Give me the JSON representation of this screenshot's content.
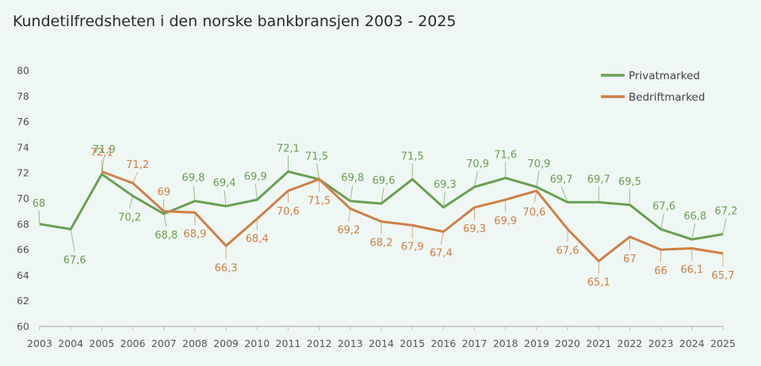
{
  "chart_data": {
    "type": "line",
    "title": "Kundetilfredsheten i den norske bankbransjen 2003 - 2025",
    "xlabel": "",
    "ylabel": "",
    "x": [
      "2003",
      "2004",
      "2005",
      "2006",
      "2007",
      "2008",
      "2009",
      "2010",
      "2011",
      "2012",
      "2013",
      "2014",
      "2015",
      "2016",
      "2017",
      "2018",
      "2019",
      "2020",
      "2021",
      "2022",
      "2023",
      "2024",
      "2025"
    ],
    "ylim": [
      60,
      80
    ],
    "yticks": [
      "60",
      "62",
      "64",
      "66",
      "68",
      "70",
      "72",
      "74",
      "76",
      "78",
      "80"
    ],
    "grid": false,
    "legend_position": "top-right",
    "series": [
      {
        "name": "Privatmarked",
        "color": "#6a9f53",
        "values": [
          68,
          67.6,
          71.9,
          70.2,
          68.8,
          69.8,
          69.4,
          69.9,
          72.1,
          71.5,
          69.8,
          69.6,
          71.5,
          69.3,
          70.9,
          71.6,
          70.9,
          69.7,
          69.7,
          69.5,
          67.6,
          66.8,
          67.2
        ],
        "labels": [
          "68",
          "67,6",
          "71,9",
          "70,2",
          "68,8",
          "69,8",
          "69,4",
          "69,9",
          "72,1",
          "71,5",
          "69,8",
          "69,6",
          "71,5",
          "69,3",
          "70,9",
          "71,6",
          "70,9",
          "69,7",
          "69,7",
          "69,5",
          "67,6",
          "66,8",
          "67,2"
        ]
      },
      {
        "name": "Bedriftmarked",
        "color": "#cf7f47",
        "values": [
          null,
          null,
          72.1,
          71.2,
          69,
          68.9,
          66.3,
          68.4,
          70.6,
          71.5,
          69.2,
          68.2,
          67.9,
          67.4,
          69.3,
          69.9,
          70.6,
          67.6,
          65.1,
          67,
          66,
          66.1,
          65.7
        ],
        "labels": [
          null,
          null,
          "72,1",
          "71,2",
          "69",
          "68,9",
          "66,3",
          "68,4",
          "70,6",
          "71,5",
          "69,2",
          "68,2",
          "67,9",
          "67,4",
          "69,3",
          "69,9",
          "70,6",
          "67,6",
          "65,1",
          "67",
          "66",
          "66,1",
          "65,7"
        ]
      }
    ]
  }
}
